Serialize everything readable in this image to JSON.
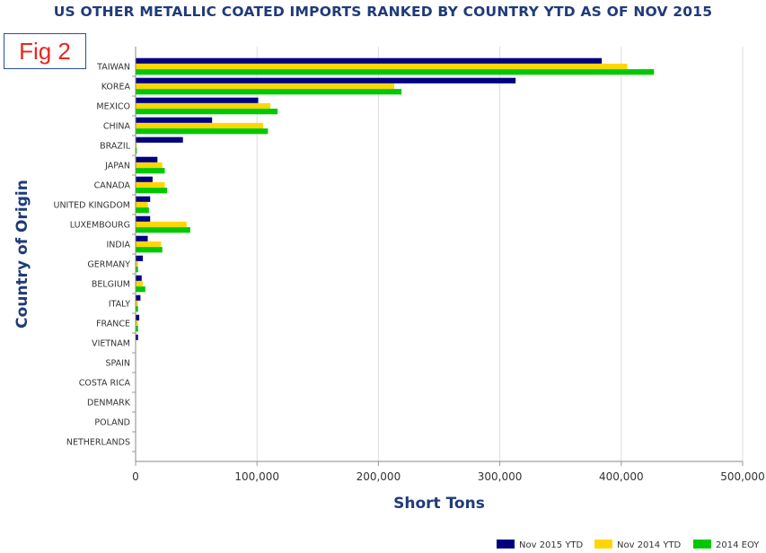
{
  "figure_label": "Fig 2",
  "chart_data": {
    "type": "bar",
    "orientation": "horizontal",
    "title": "US OTHER METALLIC COATED IMPORTS RANKED BY COUNTRY YTD AS OF NOV 2015",
    "xlabel": "Short Tons",
    "ylabel": "Country of Origin",
    "xlim": [
      0,
      500000
    ],
    "xticks": [
      0,
      100000,
      200000,
      300000,
      400000,
      500000
    ],
    "xtick_labels": [
      "0",
      "100,000",
      "200,000",
      "300,000",
      "400,000",
      "500,000"
    ],
    "grid": true,
    "legend_position": "bottom-right",
    "categories": [
      "TAIWAN",
      "KOREA",
      "MEXICO",
      "CHINA",
      "BRAZIL",
      "JAPAN",
      "CANADA",
      "UNITED KINGDOM",
      "LUXEMBOURG",
      "INDIA",
      "GERMANY",
      "BELGIUM",
      "ITALY",
      "FRANCE",
      "VIETNAM",
      "SPAIN",
      "COSTA RICA",
      "DENMARK",
      "POLAND",
      "NETHERLANDS"
    ],
    "series": [
      {
        "name": "Nov 2015 YTD",
        "color": "#000080",
        "values": [
          384000,
          313000,
          101000,
          63000,
          39000,
          18000,
          14000,
          12000,
          12000,
          10000,
          6000,
          5000,
          4000,
          3000,
          2000,
          0,
          0,
          0,
          0,
          0
        ]
      },
      {
        "name": "Nov 2014 YTD",
        "color": "#ffd700",
        "values": [
          405000,
          213000,
          111000,
          105000,
          1000,
          22000,
          24000,
          10000,
          42000,
          21000,
          2000,
          6000,
          2000,
          2000,
          0,
          0,
          0,
          0,
          0,
          0
        ]
      },
      {
        "name": "2014 EOY",
        "color": "#00c800",
        "values": [
          427000,
          219000,
          117000,
          109000,
          1000,
          24000,
          26000,
          11000,
          45000,
          22000,
          2000,
          8000,
          2000,
          2000,
          0,
          0,
          0,
          0,
          0,
          0
        ]
      }
    ]
  }
}
